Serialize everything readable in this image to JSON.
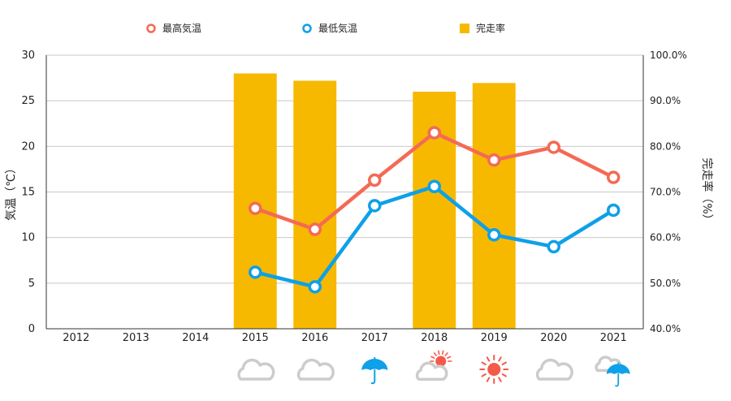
{
  "chart_data": {
    "type": "bar",
    "categories": [
      "2012",
      "2013",
      "2014",
      "2015",
      "2016",
      "2017",
      "2018",
      "2019",
      "2020",
      "2021"
    ],
    "series": [
      {
        "name": "最高気温",
        "kind": "line",
        "axis": "left",
        "color": "#f46a54",
        "values": [
          null,
          null,
          null,
          13.2,
          10.9,
          16.3,
          21.5,
          18.5,
          19.9,
          16.6
        ]
      },
      {
        "name": "最低気温",
        "kind": "line",
        "axis": "left",
        "color": "#0ea0e8",
        "values": [
          null,
          null,
          null,
          6.2,
          4.6,
          13.5,
          15.6,
          10.3,
          9.0,
          13.0
        ]
      },
      {
        "name": "完走率",
        "kind": "bar",
        "axis": "right",
        "color": "#f6b900",
        "values": [
          null,
          null,
          null,
          96.0,
          94.4,
          null,
          92.0,
          93.9,
          null,
          null
        ]
      }
    ],
    "ylabel": "気温（℃）",
    "y2label": "完走率（%）",
    "ylim": [
      0,
      30
    ],
    "y2lim": [
      40,
      100
    ],
    "yticks": [
      "0",
      "5",
      "10",
      "15",
      "20",
      "25",
      "30"
    ],
    "y2ticks": [
      "40.0%",
      "50.0%",
      "60.0%",
      "70.0%",
      "80.0%",
      "90.0%",
      "100.0%"
    ],
    "grid": true,
    "legend_position": "top",
    "weather_icons": [
      null,
      null,
      null,
      "cloud-icon",
      "cloud-icon",
      "umbrella-icon",
      "cloud-sun-icon",
      "sun-icon",
      "cloud-icon",
      "cloud-umbrella-icon"
    ],
    "colors": {
      "cloud": "#cccccc",
      "umbrella": "#0ea0e8",
      "sun": "#f45a4a",
      "grid": "#c8c8c8",
      "axis": "#333333"
    }
  }
}
